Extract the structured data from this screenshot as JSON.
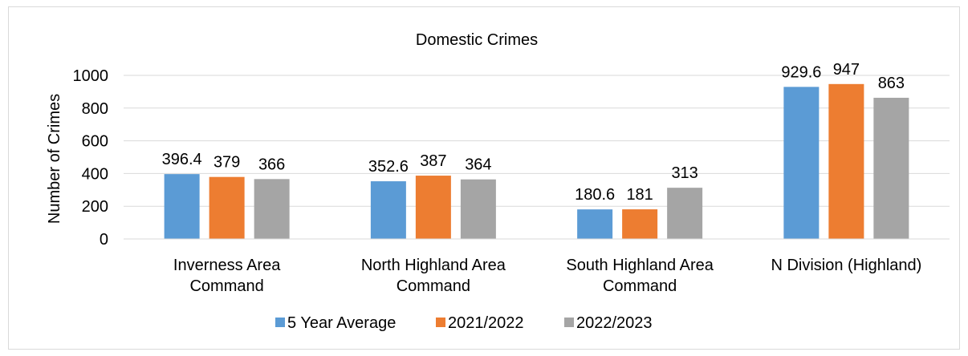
{
  "chart_data": {
    "type": "bar",
    "title": "Domestic Crimes",
    "xlabel": "",
    "ylabel": "Number of Crimes",
    "ylim": [
      0,
      1000
    ],
    "yticks": [
      0,
      200,
      400,
      600,
      800,
      1000
    ],
    "grid": true,
    "legend_position": "bottom",
    "categories": [
      [
        "Inverness Area",
        "Command"
      ],
      [
        "North Highland Area",
        "Command"
      ],
      [
        "South Highland Area",
        "Command"
      ],
      [
        "N Division (Highland)"
      ]
    ],
    "series": [
      {
        "name": "5 Year Average",
        "color": "#5b9bd5",
        "values": [
          396.4,
          352.6,
          180.6,
          929.6
        ]
      },
      {
        "name": "2021/2022",
        "color": "#ed7d31",
        "values": [
          379,
          387,
          181,
          947
        ]
      },
      {
        "name": "2022/2023",
        "color": "#a5a5a5",
        "values": [
          366,
          364,
          313,
          863
        ]
      }
    ]
  }
}
